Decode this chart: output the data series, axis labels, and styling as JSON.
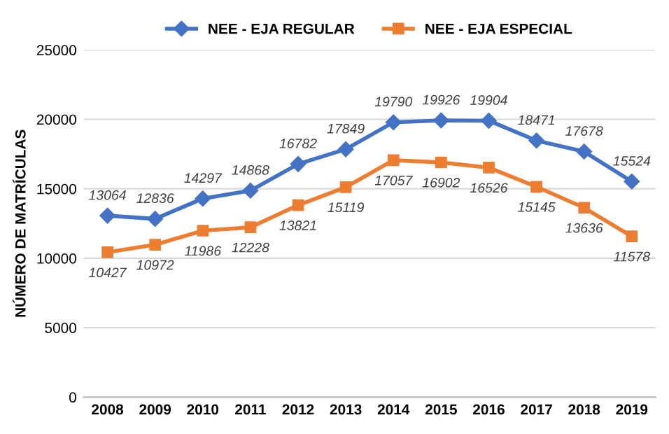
{
  "chart_data": {
    "type": "line",
    "ylabel": "NÚMERO DE MATRÍCULAS",
    "categories": [
      "2008",
      "2009",
      "2010",
      "2011",
      "2012",
      "2013",
      "2014",
      "2015",
      "2016",
      "2017",
      "2018",
      "2019"
    ],
    "series": [
      {
        "name": "NEE - EJA REGULAR",
        "color": "#4472c4",
        "marker": "diamond",
        "values": [
          13064,
          12836,
          14297,
          14868,
          16782,
          17849,
          19790,
          19926,
          19904,
          18471,
          17678,
          15524
        ]
      },
      {
        "name": "NEE - EJA ESPECIAL",
        "color": "#ed7d31",
        "marker": "square",
        "values": [
          10427,
          10972,
          11986,
          12228,
          13821,
          15119,
          17057,
          16902,
          16526,
          15145,
          13636,
          11578
        ]
      }
    ],
    "ylim": [
      0,
      25000
    ],
    "yticks": [
      0,
      5000,
      10000,
      15000,
      20000,
      25000
    ],
    "grid": "y",
    "legend": "top",
    "data_labels": true,
    "line_style": "solid"
  }
}
